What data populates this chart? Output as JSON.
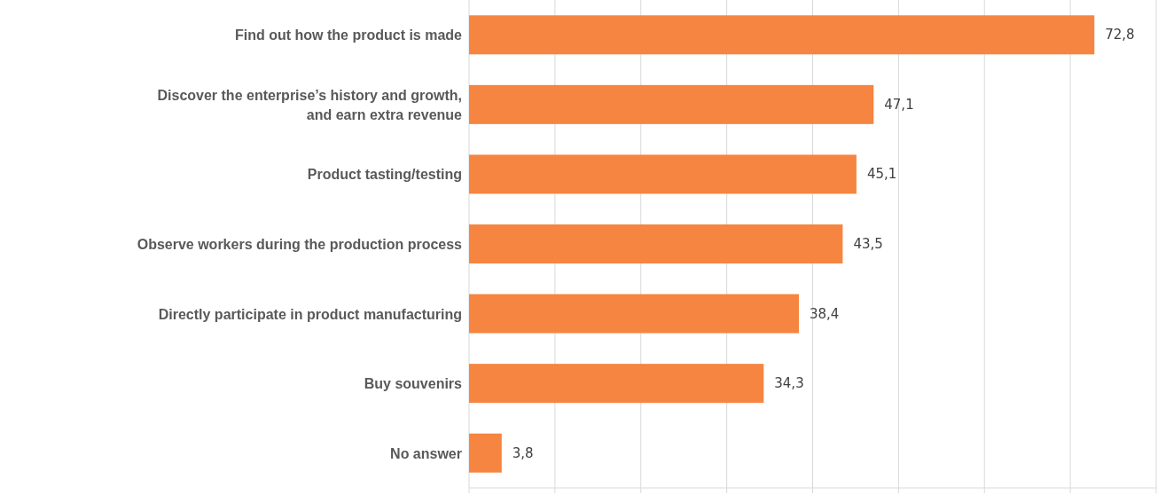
{
  "chart_data": {
    "type": "bar",
    "orientation": "horizontal",
    "categories": [
      "Find out how the product is made",
      "Discover the enterprise’s history and growth, and earn extra revenue",
      "Product tasting/testing",
      "Observe workers during the production process",
      "Directly participate in product manufacturing",
      "Buy souvenirs",
      "No answer"
    ],
    "values": [
      72.8,
      47.1,
      45.1,
      43.5,
      38.4,
      34.3,
      3.8
    ],
    "value_labels": [
      "72,8",
      "47,1",
      "45,1",
      "43,5",
      "38,4",
      "34,3",
      "3,8"
    ],
    "color": "#f58540",
    "xlim": [
      0,
      80
    ],
    "xticks": [
      {
        "value": 0,
        "label": null
      },
      {
        "value": 10,
        "label": null
      },
      {
        "value": 20,
        "label": null
      },
      {
        "value": 30,
        "label": null
      },
      {
        "value": 40,
        "label": null
      },
      {
        "value": 50,
        "label": null
      },
      {
        "value": 60,
        "label": null
      },
      {
        "value": 70,
        "label": null
      },
      {
        "value": 80,
        "label": null
      }
    ],
    "grid": "x",
    "tick_labels": "y"
  }
}
